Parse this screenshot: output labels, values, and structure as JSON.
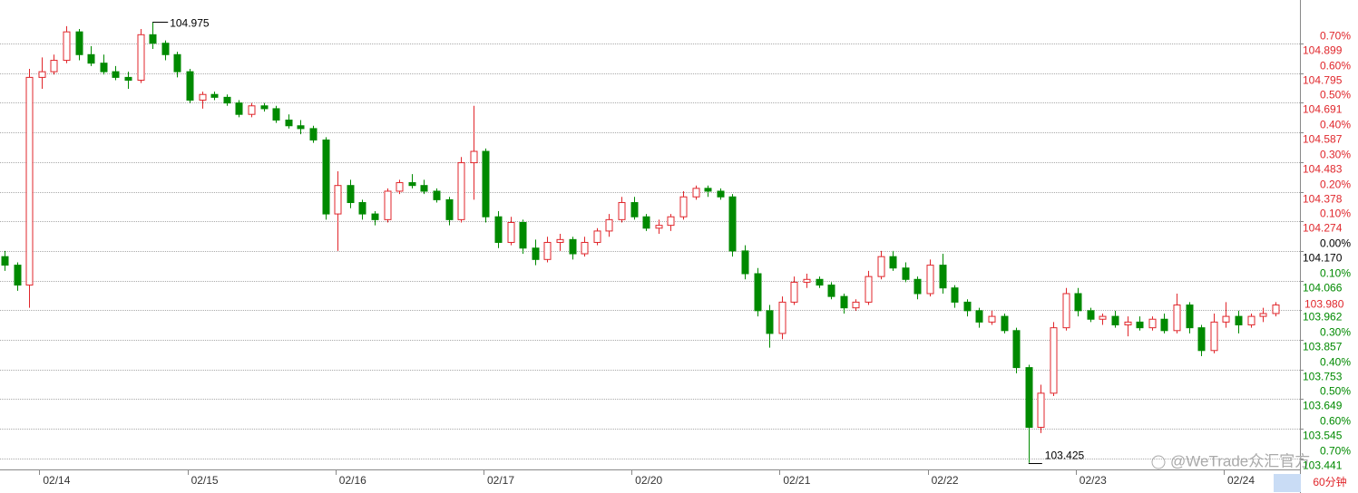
{
  "chart_data": {
    "type": "candlestick",
    "up_color": "#e0262b",
    "down_color": "#008a00",
    "flat_color": "#000000",
    "grid": true,
    "ylim": [
      103.402,
      105.052
    ],
    "yticks": [
      {
        "value": 104.899,
        "label": "104.899"
      },
      {
        "value": 104.795,
        "label": "104.795"
      },
      {
        "value": 104.691,
        "label": "104.691"
      },
      {
        "value": 104.587,
        "label": "104.587"
      },
      {
        "value": 104.483,
        "label": "104.483"
      },
      {
        "value": 104.378,
        "label": "104.378"
      },
      {
        "value": 104.274,
        "label": "104.274"
      },
      {
        "value": 104.17,
        "label": "104.170"
      },
      {
        "value": 104.066,
        "label": "104.066"
      },
      {
        "value": 103.962,
        "label": "103.962"
      },
      {
        "value": 103.857,
        "label": "103.857"
      },
      {
        "value": 103.753,
        "label": "103.753"
      },
      {
        "value": 103.649,
        "label": "103.649"
      },
      {
        "value": 103.545,
        "label": "103.545"
      },
      {
        "value": 103.441,
        "label": "103.441"
      }
    ],
    "pct_labels": [
      "0.70%",
      "0.60%",
      "0.50%",
      "0.40%",
      "0.30%",
      "0.20%",
      "0.10%",
      "0.00%",
      "0.10%",
      null,
      "0.30%",
      "0.40%",
      "0.50%",
      "0.60%",
      "0.70%"
    ],
    "current_price": {
      "value": 103.98,
      "label": "103.980"
    },
    "annotations": {
      "high": "104.975",
      "low": "103.425"
    },
    "period_button": "60分钟",
    "watermark": "@WeTrade众汇官方",
    "categories": [
      null,
      null,
      null,
      null,
      "02/14",
      null,
      null,
      null,
      null,
      null,
      null,
      null,
      null,
      null,
      null,
      null,
      "02/15",
      null,
      null,
      null,
      null,
      null,
      null,
      null,
      null,
      null,
      null,
      null,
      "02/16",
      null,
      null,
      null,
      null,
      null,
      null,
      null,
      null,
      null,
      null,
      null,
      "02/17",
      null,
      null,
      null,
      null,
      null,
      null,
      null,
      null,
      null,
      null,
      null,
      "02/20",
      null,
      null,
      null,
      null,
      null,
      null,
      null,
      null,
      null,
      null,
      null,
      "02/21",
      null,
      null,
      null,
      null,
      null,
      null,
      null,
      null,
      null,
      null,
      null,
      "02/22",
      null,
      null,
      null,
      null,
      null,
      null,
      null,
      null,
      null,
      null,
      null,
      "02/23",
      null,
      null,
      null,
      null,
      null,
      null,
      null,
      null,
      null,
      null,
      null,
      "02/24",
      null,
      null,
      null
    ],
    "open": [
      104.15,
      104.12,
      104.05,
      104.78,
      104.8,
      104.84,
      104.94,
      104.86,
      104.83,
      104.8,
      104.78,
      104.77,
      104.93,
      104.9,
      104.86,
      104.8,
      104.7,
      104.72,
      104.71,
      104.69,
      104.65,
      104.68,
      104.67,
      104.63,
      104.61,
      104.6,
      104.56,
      104.3,
      104.4,
      104.34,
      104.3,
      104.28,
      104.38,
      104.41,
      104.4,
      104.38,
      104.35,
      104.28,
      104.48,
      104.52,
      104.29,
      104.2,
      104.27,
      104.18,
      104.14,
      104.2,
      104.21,
      104.16,
      104.2,
      104.24,
      104.28,
      104.34,
      104.29,
      104.25,
      104.26,
      104.29,
      104.36,
      104.39,
      104.38,
      104.36,
      104.17,
      104.09,
      103.96,
      103.88,
      103.99,
      104.06,
      104.07,
      104.05,
      104.01,
      103.97,
      103.99,
      104.08,
      104.15,
      104.11,
      104.07,
      104.02,
      104.12,
      104.04,
      103.99,
      103.96,
      103.92,
      103.94,
      103.89,
      103.76,
      103.55,
      103.67,
      103.9,
      104.02,
      103.96,
      103.93,
      103.94,
      103.91,
      103.92,
      103.9,
      103.93,
      103.89,
      103.98,
      103.9,
      103.82,
      103.92,
      103.94,
      103.91,
      103.94,
      103.95
    ],
    "high": [
      104.17,
      104.13,
      104.81,
      104.85,
      104.86,
      104.96,
      104.95,
      104.89,
      104.86,
      104.82,
      104.8,
      104.95,
      104.975,
      104.91,
      104.87,
      104.81,
      104.73,
      104.73,
      104.72,
      104.7,
      104.69,
      104.69,
      104.68,
      104.65,
      104.63,
      104.61,
      104.57,
      104.45,
      104.42,
      104.35,
      104.31,
      104.39,
      104.42,
      104.44,
      104.42,
      104.39,
      104.36,
      104.5,
      104.68,
      104.53,
      104.31,
      104.29,
      104.28,
      104.21,
      104.22,
      104.23,
      104.22,
      104.22,
      104.25,
      104.3,
      104.36,
      104.36,
      104.3,
      104.28,
      104.3,
      104.38,
      104.4,
      104.4,
      104.39,
      104.37,
      104.19,
      104.11,
      103.98,
      104.01,
      104.08,
      104.09,
      104.08,
      104.06,
      104.02,
      104.0,
      104.1,
      104.17,
      104.17,
      104.13,
      104.08,
      104.14,
      104.16,
      104.05,
      104.0,
      103.97,
      103.96,
      103.95,
      103.9,
      103.77,
      103.7,
      103.92,
      104.04,
      104.04,
      103.97,
      103.95,
      103.96,
      103.94,
      103.94,
      103.94,
      103.95,
      104.02,
      103.99,
      103.91,
      103.95,
      103.99,
      103.96,
      103.95,
      103.97,
      103.99
    ],
    "low": [
      104.1,
      104.03,
      103.97,
      104.74,
      104.79,
      104.83,
      104.84,
      104.82,
      104.79,
      104.77,
      104.74,
      104.76,
      104.88,
      104.84,
      104.78,
      104.69,
      104.67,
      104.7,
      104.68,
      104.64,
      104.64,
      104.66,
      104.62,
      104.6,
      104.58,
      104.55,
      104.28,
      104.17,
      104.32,
      104.28,
      104.26,
      104.27,
      104.37,
      104.39,
      104.37,
      104.34,
      104.26,
      104.27,
      104.35,
      104.27,
      104.18,
      104.19,
      104.16,
      104.12,
      104.13,
      104.17,
      104.14,
      104.15,
      104.19,
      104.22,
      104.27,
      104.28,
      104.24,
      104.23,
      104.24,
      104.28,
      104.35,
      104.36,
      104.35,
      104.15,
      104.07,
      103.94,
      103.83,
      103.86,
      103.98,
      104.04,
      104.04,
      104.0,
      103.95,
      103.96,
      103.98,
      104.07,
      104.1,
      104.06,
      104.0,
      104.01,
      104.02,
      103.97,
      103.94,
      103.9,
      103.91,
      103.88,
      103.74,
      103.425,
      103.53,
      103.66,
      103.89,
      103.94,
      103.92,
      103.91,
      103.9,
      103.87,
      103.89,
      103.89,
      103.88,
      103.88,
      103.88,
      103.8,
      103.81,
      103.9,
      103.88,
      103.9,
      103.92,
      103.94
    ],
    "close": [
      104.12,
      104.05,
      104.78,
      104.8,
      104.84,
      104.94,
      104.86,
      104.83,
      104.8,
      104.78,
      104.77,
      104.93,
      104.9,
      104.86,
      104.8,
      104.7,
      104.72,
      104.71,
      104.69,
      104.65,
      104.68,
      104.67,
      104.63,
      104.61,
      104.6,
      104.56,
      104.3,
      104.4,
      104.34,
      104.3,
      104.28,
      104.38,
      104.41,
      104.4,
      104.38,
      104.35,
      104.28,
      104.48,
      104.52,
      104.29,
      104.2,
      104.27,
      104.18,
      104.14,
      104.2,
      104.21,
      104.16,
      104.2,
      104.24,
      104.28,
      104.34,
      104.29,
      104.25,
      104.26,
      104.29,
      104.36,
      104.39,
      104.38,
      104.36,
      104.17,
      104.09,
      103.96,
      103.88,
      103.99,
      104.06,
      104.07,
      104.05,
      104.01,
      103.97,
      103.99,
      104.08,
      104.15,
      104.11,
      104.07,
      104.02,
      104.12,
      104.04,
      103.99,
      103.96,
      103.92,
      103.94,
      103.89,
      103.76,
      103.55,
      103.67,
      103.9,
      104.02,
      103.96,
      103.93,
      103.94,
      103.91,
      103.92,
      103.9,
      103.93,
      103.89,
      103.98,
      103.9,
      103.82,
      103.92,
      103.94,
      103.91,
      103.94,
      103.95,
      103.98
    ]
  }
}
